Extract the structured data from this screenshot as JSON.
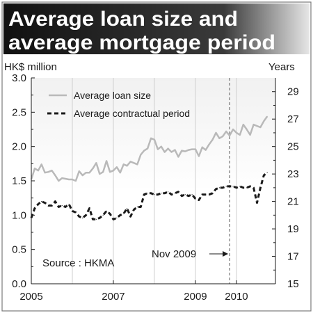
{
  "chart_data": {
    "type": "line",
    "title": "Average loan size and average mortgage period",
    "left_axis_label": "HK$ million",
    "right_axis_label": "Years",
    "left_ylim": [
      0,
      3.0
    ],
    "left_ticks": [
      "0.0",
      "0.5",
      "1.0",
      "1.5",
      "2.0",
      "2.5",
      "3.0"
    ],
    "right_ylim": [
      15,
      30
    ],
    "right_ticks": [
      "15",
      "17",
      "19",
      "21",
      "23",
      "25",
      "27",
      "29"
    ],
    "x_ticks": [
      {
        "label": "2005",
        "value": 2005.0
      },
      {
        "label": "2007",
        "value": 2007.0
      },
      {
        "label": "2009",
        "value": 2009.0
      },
      {
        "label": "2010",
        "value": 2010.0
      }
    ],
    "xlim": [
      2005.0,
      2010.95
    ],
    "gridlines": [
      2006.0,
      2007.0,
      2008.0,
      2009.0,
      2010.0
    ],
    "source": "Source : HKMA",
    "annotation": {
      "label": "Nov 2009",
      "x": 2009.833
    },
    "legend_position": "top-left",
    "series": [
      {
        "name": "Average loan size",
        "axis": "left",
        "color": "#b9b9b9",
        "style": "solid",
        "x": [
          2005.0,
          2005.083,
          2005.167,
          2005.25,
          2005.333,
          2005.417,
          2005.5,
          2005.583,
          2005.667,
          2005.75,
          2005.833,
          2005.917,
          2006.0,
          2006.083,
          2006.167,
          2006.25,
          2006.333,
          2006.417,
          2006.5,
          2006.583,
          2006.667,
          2006.75,
          2006.833,
          2006.917,
          2007.0,
          2007.083,
          2007.167,
          2007.25,
          2007.333,
          2007.417,
          2007.5,
          2007.583,
          2007.667,
          2007.75,
          2007.833,
          2007.917,
          2008.0,
          2008.083,
          2008.167,
          2008.25,
          2008.333,
          2008.417,
          2008.5,
          2008.583,
          2008.667,
          2008.75,
          2008.833,
          2008.917,
          2009.0,
          2009.083,
          2009.167,
          2009.25,
          2009.333,
          2009.417,
          2009.5,
          2009.583,
          2009.667,
          2009.75,
          2009.833,
          2009.917,
          2010.0,
          2010.083,
          2010.167,
          2010.25,
          2010.333,
          2010.417,
          2010.5,
          2010.583,
          2010.667,
          2010.75
        ],
        "values": [
          1.52,
          1.68,
          1.65,
          1.74,
          1.62,
          1.63,
          1.65,
          1.58,
          1.5,
          1.54,
          1.53,
          1.52,
          1.52,
          1.5,
          1.64,
          1.58,
          1.62,
          1.62,
          1.68,
          1.76,
          1.6,
          1.63,
          1.79,
          1.63,
          1.65,
          1.7,
          1.62,
          1.74,
          1.72,
          1.78,
          1.76,
          1.74,
          1.88,
          1.94,
          1.97,
          2.12,
          2.1,
          1.96,
          2.0,
          1.92,
          1.97,
          1.92,
          1.95,
          1.85,
          1.94,
          1.93,
          1.95,
          1.96,
          1.96,
          1.86,
          1.99,
          1.95,
          2.03,
          2.1,
          2.2,
          2.12,
          2.15,
          2.22,
          2.16,
          2.25,
          2.2,
          2.17,
          2.32,
          2.25,
          2.17,
          2.32,
          2.3,
          2.28,
          2.37,
          2.44
        ]
      },
      {
        "name": "Average contractual period",
        "axis": "right",
        "color": "#1a1a1a",
        "style": "dashed",
        "x": [
          2005.0,
          2005.083,
          2005.167,
          2005.25,
          2005.333,
          2005.417,
          2005.5,
          2005.583,
          2005.667,
          2005.75,
          2005.833,
          2005.917,
          2006.0,
          2006.083,
          2006.167,
          2006.25,
          2006.333,
          2006.417,
          2006.5,
          2006.583,
          2006.667,
          2006.75,
          2006.833,
          2006.917,
          2007.0,
          2007.083,
          2007.167,
          2007.25,
          2007.333,
          2007.417,
          2007.5,
          2007.583,
          2007.667,
          2007.75,
          2007.833,
          2007.917,
          2008.0,
          2008.083,
          2008.167,
          2008.25,
          2008.333,
          2008.417,
          2008.5,
          2008.583,
          2008.667,
          2008.75,
          2008.833,
          2008.917,
          2009.0,
          2009.083,
          2009.167,
          2009.25,
          2009.333,
          2009.417,
          2009.5,
          2009.583,
          2009.667,
          2009.75,
          2009.833,
          2009.917,
          2010.0,
          2010.083,
          2010.167,
          2010.25,
          2010.333,
          2010.417,
          2010.5,
          2010.583,
          2010.667,
          2010.75
        ],
        "values": [
          19.8,
          20.5,
          20.8,
          21.0,
          20.9,
          20.7,
          20.7,
          21.0,
          20.6,
          20.7,
          20.6,
          20.8,
          20.3,
          20.2,
          19.9,
          19.8,
          20.0,
          20.5,
          19.7,
          19.7,
          19.8,
          20.0,
          20.3,
          20.1,
          19.7,
          19.8,
          20.0,
          20.1,
          20.5,
          19.9,
          20.4,
          20.6,
          20.6,
          21.5,
          21.6,
          21.6,
          21.5,
          21.5,
          21.6,
          21.6,
          21.7,
          21.5,
          21.6,
          21.7,
          21.4,
          21.5,
          21.4,
          21.5,
          21.2,
          21.1,
          21.5,
          21.5,
          21.5,
          21.6,
          21.9,
          22.0,
          22.0,
          22.1,
          22.1,
          22.1,
          22.0,
          22.1,
          22.0,
          22.0,
          22.1,
          22.0,
          20.9,
          22.0,
          22.9,
          23.1
        ]
      }
    ]
  }
}
